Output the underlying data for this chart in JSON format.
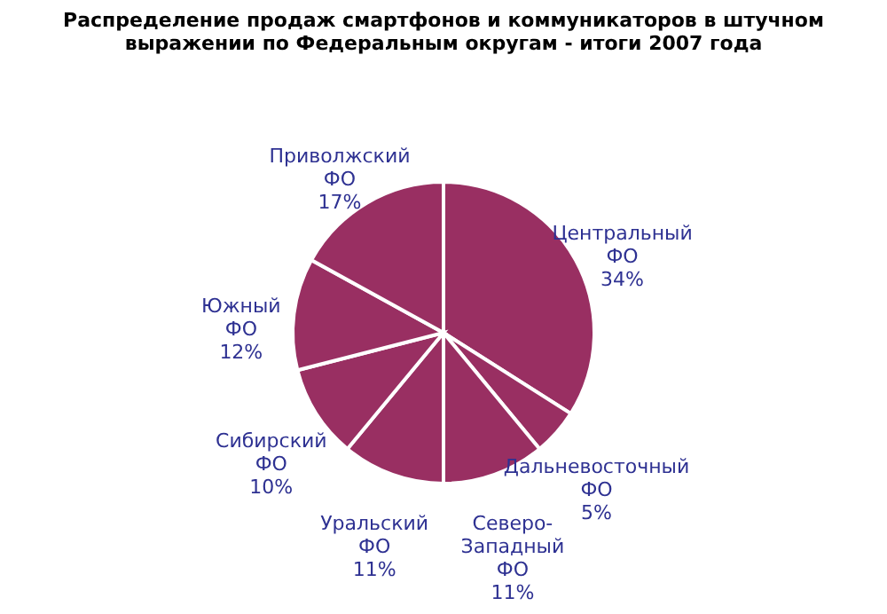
{
  "chart_data": {
    "type": "pie",
    "title": "Распределение продаж смартфонов и коммуникаторов в штучном выражении по Федеральным округам  - итоги 2007 года",
    "categories": [
      "Центральный ФО",
      "Дальневосточный ФО",
      "Северо-Западный ФО",
      "Уральский ФО",
      "Сибирский ФО",
      "Южный ФО",
      "Приволжский ФО"
    ],
    "values": [
      34,
      5,
      11,
      11,
      10,
      12,
      17
    ],
    "value_labels": [
      "34%",
      "5%",
      "11%",
      "11%",
      "10%",
      "12%",
      "17%"
    ],
    "colors": [
      "#992f62",
      "#992f62",
      "#992f62",
      "#992f62",
      "#992f62",
      "#992f62",
      "#992f62"
    ]
  }
}
